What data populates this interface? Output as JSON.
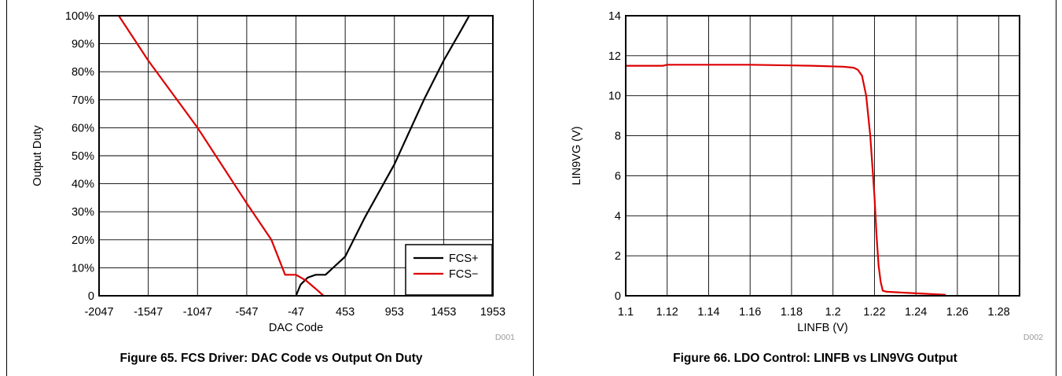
{
  "chart_data": [
    {
      "type": "line",
      "caption": "Figure 65.  FCS Driver: DAC Code vs Output On Duty",
      "doc_id": "D001",
      "xlabel": "DAC Code",
      "ylabel": "Output Duty",
      "xlim": [
        -2047,
        1953
      ],
      "ylim": [
        0,
        100
      ],
      "x_ticks": [
        -2047,
        -1547,
        -1047,
        -547,
        -47,
        453,
        953,
        1453,
        1953
      ],
      "x_tick_labels": [
        "-2047",
        "-1547",
        "-1047",
        "-547",
        "-47",
        "453",
        "953",
        "1453",
        "1953"
      ],
      "y_ticks": [
        0,
        10,
        20,
        30,
        40,
        50,
        60,
        70,
        80,
        90,
        100
      ],
      "y_tick_labels": [
        "0",
        "10%",
        "20%",
        "30%",
        "40%",
        "50%",
        "60%",
        "70%",
        "80%",
        "90%",
        "100%"
      ],
      "grid": true,
      "legend_position": "bottom-right",
      "series": [
        {
          "name": "FCS+",
          "color": "#000000",
          "x": [
            -47,
            0,
            73,
            153,
            253,
            453,
            653,
            953,
            1253,
            1453,
            1633,
            1713
          ],
          "y": [
            0,
            4,
            6.5,
            7.5,
            7.5,
            14,
            28,
            47,
            70,
            84,
            95,
            100
          ]
        },
        {
          "name": "FCS−",
          "color": "#dd0000",
          "x": [
            -1847,
            -1547,
            -1047,
            -547,
            -297,
            -157,
            -47,
            53,
            153,
            233
          ],
          "y": [
            100,
            84,
            60,
            33,
            20,
            7.5,
            7.5,
            5.5,
            2.5,
            0
          ]
        }
      ]
    },
    {
      "type": "line",
      "caption": "Figure 66. LDO Control: LINFB vs LIN9VG Output",
      "doc_id": "D002",
      "xlabel": "LINFB (V)",
      "ylabel": "LIN9VG (V)",
      "xlim": [
        1.1,
        1.29
      ],
      "ylim": [
        0,
        14
      ],
      "x_ticks": [
        1.1,
        1.12,
        1.14,
        1.16,
        1.18,
        1.2,
        1.22,
        1.24,
        1.26,
        1.28
      ],
      "x_tick_labels": [
        "1.1",
        "1.12",
        "1.14",
        "1.16",
        "1.18",
        "1.2",
        "1.22",
        "1.24",
        "1.26",
        "1.28"
      ],
      "y_ticks": [
        0,
        2,
        4,
        6,
        8,
        10,
        12,
        14
      ],
      "y_tick_labels": [
        "0",
        "2",
        "4",
        "6",
        "8",
        "10",
        "12",
        "14"
      ],
      "grid": true,
      "series": [
        {
          "color": "#dd0000",
          "x": [
            1.1,
            1.118,
            1.12,
            1.16,
            1.19,
            1.205,
            1.21,
            1.212,
            1.214,
            1.216,
            1.218,
            1.22,
            1.221,
            1.222,
            1.223,
            1.224,
            1.226,
            1.24,
            1.254
          ],
          "y": [
            11.5,
            11.5,
            11.55,
            11.55,
            11.5,
            11.45,
            11.4,
            11.3,
            11.0,
            10.0,
            8.0,
            5.0,
            3.0,
            1.5,
            0.7,
            0.25,
            0.2,
            0.12,
            0.05
          ]
        }
      ]
    }
  ]
}
